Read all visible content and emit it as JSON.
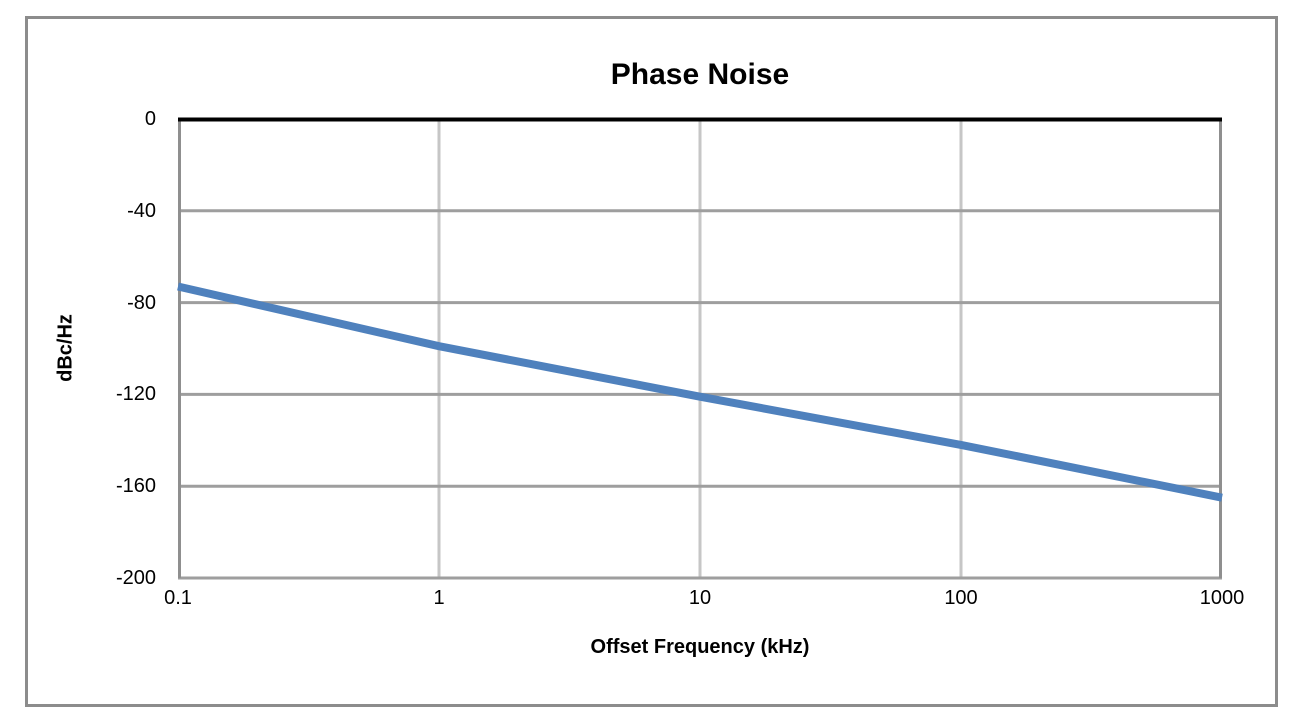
{
  "chart": {
    "colors": {
      "series_line": "#4F81BD",
      "top_axis_line": "#000000",
      "gridline_horizontal": "#9E9E9E",
      "gridline_vertical": "#C6C6C6",
      "plot_side_boundary": "#8F8F8F",
      "frame_border": "#8C8C8C",
      "text": "#000000",
      "background": "#FFFFFF"
    }
  },
  "chart_data": {
    "type": "line",
    "title": "Phase Noise",
    "xlabel": "Offset Frequency (kHz)",
    "ylabel": "dBc/Hz",
    "x_scale": "log",
    "xlim": [
      0.1,
      1000
    ],
    "ylim": [
      -200,
      0
    ],
    "x_ticks": [
      "0.1",
      "1",
      "10",
      "100",
      "1000"
    ],
    "x_tick_values": [
      0.1,
      1,
      10,
      100,
      1000
    ],
    "y_ticks": [
      "0",
      "-40",
      "-80",
      "-120",
      "-160",
      "-200"
    ],
    "y_tick_values": [
      0,
      -40,
      -80,
      -120,
      -160,
      -200
    ],
    "grid": true,
    "legend": false,
    "series": [
      {
        "name": "Phase Noise",
        "color": "#4F81BD",
        "x": [
          0.1,
          1,
          10,
          100,
          1000
        ],
        "y": [
          -73,
          -99,
          -121,
          -142,
          -165
        ]
      }
    ]
  }
}
